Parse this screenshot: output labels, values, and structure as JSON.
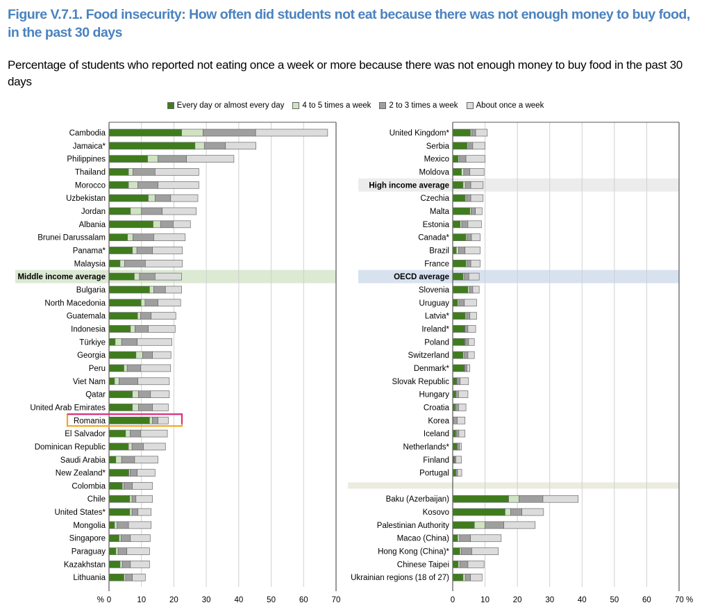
{
  "title": "Figure V.7.1. Food insecurity: How often did students not eat because there was not enough money to buy food, in the past 30 days",
  "subtitle": "Percentage of students who reported not eating once a week or more because there was not enough money to buy food in the past 30 days",
  "colors": {
    "every_day": "#3f7d1c",
    "four_five": "#cfe3c2",
    "two_three": "#9f9f9f",
    "once": "#dcdcdc",
    "middle_band": "#dce9d3",
    "high_band": "#ececec",
    "oecd_band": "#d8e2ef",
    "separator_band": "#ebebdf",
    "highlight_top": "#d63384",
    "highlight_bottom": "#f5a623",
    "grid": "#d0d0d0",
    "axis": "#555555"
  },
  "chart_data": [
    {
      "type": "bar",
      "stacked": true,
      "orientation": "horizontal",
      "panel": "left",
      "xlim": [
        0,
        70
      ],
      "xticks": [
        "0",
        "10",
        "20",
        "30",
        "40",
        "50",
        "60",
        "70"
      ],
      "xtick_values": [
        0,
        10,
        20,
        30,
        40,
        50,
        60,
        70
      ],
      "axis_unit_label": "%",
      "grid": true,
      "legend": {
        "placement": "top-center",
        "entries": [
          "Every day or almost every day",
          "4 to 5 times a week",
          "2 to 3 times a week",
          "About once a week"
        ]
      },
      "series_names": [
        "Every day or almost every day",
        "4 to 5 times a week",
        "2 to 3 times a week",
        "About once a week"
      ],
      "categories": [
        "Cambodia",
        "Jamaica*",
        "Philippines",
        "Thailand",
        "Morocco",
        "Uzbekistan",
        "Jordan",
        "Albania",
        "Brunei Darussalam",
        "Panama*",
        "Malaysia",
        "Middle income average",
        "Bulgaria",
        "North Macedonia",
        "Guatemala",
        "Indonesia",
        "Türkiye",
        "Georgia",
        "Peru",
        "Viet Nam",
        "Qatar",
        "United Arab Emirates",
        "Romania",
        "El Salvador",
        "Dominican Republic",
        "Saudi Arabia",
        "New Zealand*",
        "Colombia",
        "Chile",
        "United States*",
        "Mongolia",
        "Singapore",
        "Paraguay",
        "Kazakhstan",
        "Lithuania"
      ],
      "highlight": {
        "Middle income average": "middle_band",
        "Romania": "box"
      },
      "series": [
        {
          "name": "Every day or almost every day",
          "values": [
            22.4,
            26.5,
            11.9,
            6.0,
            6.0,
            12.1,
            6.6,
            13.6,
            5.7,
            7.2,
            3.4,
            7.8,
            12.5,
            9.9,
            8.8,
            6.6,
            1.9,
            8.3,
            4.6,
            1.7,
            7.2,
            7.2,
            12.5,
            5.1,
            6.0,
            2.1,
            6.1,
            4.1,
            6.4,
            6.4,
            1.7,
            3.1,
            2.1,
            3.4,
            4.6
          ]
        },
        {
          "name": "4 to 5 times a week",
          "values": [
            6.6,
            2.9,
            3.2,
            1.4,
            2.9,
            2.1,
            3.4,
            2.3,
            1.7,
            1.4,
            1.4,
            1.6,
            1.3,
            1.2,
            0.9,
            1.4,
            2.0,
            2.1,
            1.0,
            1.4,
            1.9,
            1.9,
            0.9,
            1.4,
            1.1,
            1.8,
            0.4,
            0.5,
            0.7,
            0.7,
            0.8,
            0.6,
            0.7,
            0.7,
            0.5
          ]
        },
        {
          "name": "2 to 3 times a week",
          "values": [
            16.2,
            6.5,
            8.8,
            6.8,
            6.2,
            4.8,
            6.4,
            3.9,
            6.4,
            4.8,
            6.4,
            4.8,
            3.6,
            4.0,
            3.3,
            4.1,
            4.8,
            3.0,
            4.2,
            5.8,
            3.7,
            4.3,
            1.7,
            3.3,
            3.5,
            4.0,
            2.2,
            2.6,
            1.2,
            1.8,
            3.5,
            2.9,
            2.7,
            2.5,
            2.1
          ]
        },
        {
          "name": "About once a week",
          "values": [
            22.2,
            9.4,
            14.6,
            13.5,
            12.6,
            8.4,
            10.5,
            5.3,
            9.7,
            9.2,
            11.4,
            8.2,
            5.0,
            7.0,
            7.6,
            8.3,
            10.7,
            5.7,
            9.2,
            9.7,
            5.8,
            4.9,
            3.2,
            8.2,
            6.8,
            7.2,
            5.5,
            6.2,
            5.1,
            4.1,
            7.0,
            6.1,
            7.0,
            5.9,
            4.0
          ]
        }
      ]
    },
    {
      "type": "bar",
      "stacked": true,
      "orientation": "horizontal",
      "panel": "right",
      "xlim": [
        0,
        70
      ],
      "xticks": [
        "0",
        "10",
        "20",
        "30",
        "40",
        "50",
        "60",
        "70 %"
      ],
      "xtick_values": [
        0,
        10,
        20,
        30,
        40,
        50,
        60,
        70
      ],
      "grid": true,
      "series_names": [
        "Every day or almost every day",
        "4 to 5 times a week",
        "2 to 3 times a week",
        "About once a week"
      ],
      "categories": [
        "United Kingdom*",
        "Serbia",
        "Mexico",
        "Moldova",
        "High income average",
        "Czechia",
        "Malta",
        "Estonia",
        "Canada*",
        "Brazil",
        "France",
        "OECD average",
        "Slovenia",
        "Uruguay",
        "Latvia*",
        "Ireland*",
        "Poland",
        "Switzerland",
        "Denmark*",
        "Slovak Republic",
        "Hungary",
        "Croatia",
        "Korea",
        "Iceland",
        "Netherlands*",
        "Finland",
        "Portugal",
        "",
        "Baku (Azerbaijan)",
        "Kosovo",
        "Palestinian Authority",
        "Macao (China)",
        "Hong Kong (China)*",
        "Chinese Taipei",
        "Ukrainian regions (18 of 27)"
      ],
      "highlight": {
        "High income average": "high_band",
        "OECD average": "oecd_band"
      },
      "series": [
        {
          "name": "Every day or almost every day",
          "values": [
            5.5,
            4.5,
            1.7,
            2.7,
            3.2,
            3.9,
            5.3,
            2.3,
            4.1,
            1.1,
            4.1,
            3.2,
            4.7,
            1.5,
            3.9,
            3.7,
            3.7,
            3.2,
            3.6,
            1.2,
            0.9,
            0.7,
            0.1,
            0.9,
            1.3,
            0.5,
            0.9,
            null,
            17.3,
            16.2,
            6.7,
            1.5,
            2.2,
            1.7,
            3.2
          ]
        },
        {
          "name": "4 to 5 times a week",
          "values": [
            0.4,
            0.4,
            0.4,
            0.7,
            0.7,
            0.4,
            0.4,
            0.5,
            0.4,
            0.7,
            0.4,
            0.4,
            0.5,
            0.4,
            0.4,
            0.1,
            0.2,
            0.4,
            0.2,
            0.1,
            0.1,
            0.2,
            0.1,
            0.2,
            0.1,
            0.1,
            0.1,
            null,
            3.2,
            1.7,
            3.3,
            0.6,
            0.5,
            0.5,
            0.7
          ]
        },
        {
          "name": "2 to 3 times a week",
          "values": [
            1.2,
            1.3,
            2.0,
            1.9,
            1.7,
            1.3,
            1.3,
            1.9,
            1.3,
            2.0,
            1.1,
            1.4,
            1.0,
            1.7,
            1.0,
            0.9,
            1.0,
            1.1,
            0.6,
            1.0,
            0.8,
            0.9,
            1.2,
            0.8,
            0.7,
            0.4,
            0.5,
            null,
            7.4,
            3.5,
            5.8,
            3.4,
            3.2,
            2.5,
            1.6
          ]
        },
        {
          "name": "About once a week",
          "values": [
            3.6,
            3.8,
            5.9,
            4.4,
            3.8,
            3.8,
            2.1,
            4.2,
            2.7,
            4.7,
            2.9,
            3.2,
            2.0,
            3.8,
            2.1,
            2.4,
            1.8,
            2.0,
            0.9,
            2.6,
            2.9,
            2.3,
            2.4,
            1.9,
            0.6,
            1.7,
            1.3,
            null,
            10.9,
            6.7,
            9.7,
            9.5,
            8.2,
            5.0,
            3.6
          ]
        }
      ]
    }
  ]
}
